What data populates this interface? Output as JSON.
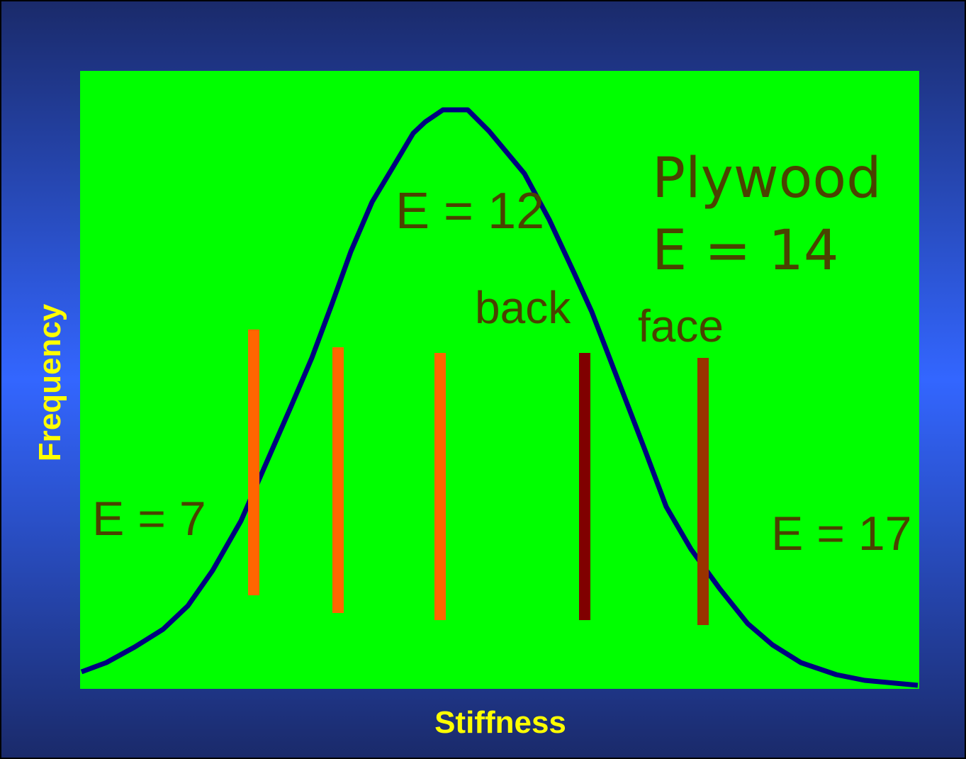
{
  "y_axis_label": "Frequency",
  "x_axis_label": "Stiffness",
  "annotations": {
    "low": "E = 7",
    "mean": "E = 12",
    "high": "E = 17",
    "back": "back",
    "face": "face"
  },
  "plywood": {
    "title": "Plywood",
    "value": "E = 14"
  }
}
